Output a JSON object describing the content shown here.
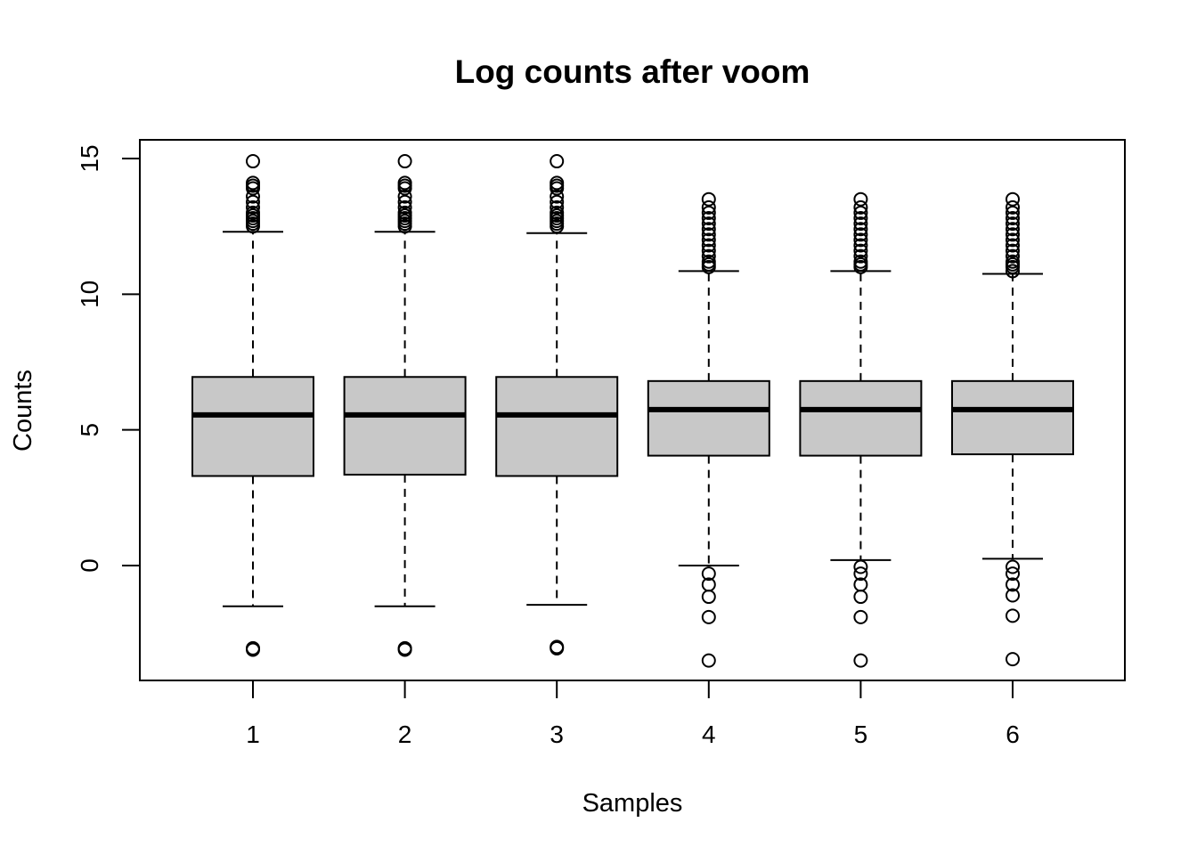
{
  "chart_data": {
    "type": "boxplot",
    "title": "Log counts after voom",
    "xlabel": "Samples",
    "ylabel": "Counts",
    "ylim": [
      -4.2,
      15.7
    ],
    "yticks": [
      0,
      5,
      10,
      15
    ],
    "categories": [
      "1",
      "2",
      "3",
      "4",
      "5",
      "6"
    ],
    "box_fill": "#c8c8c8",
    "boxes": [
      {
        "category": "1",
        "q1": 3.3,
        "median": 5.55,
        "q3": 6.95,
        "whisker_low": -1.5,
        "whisker_high": 12.3,
        "outliers_high": [
          12.5,
          12.6,
          12.7,
          12.8,
          12.9,
          13.0,
          13.2,
          13.4,
          13.6,
          13.9,
          14.0,
          14.1,
          14.9
        ],
        "outliers_low": [
          -3.05,
          -3.1
        ]
      },
      {
        "category": "2",
        "q1": 3.35,
        "median": 5.55,
        "q3": 6.95,
        "whisker_low": -1.5,
        "whisker_high": 12.3,
        "outliers_high": [
          12.5,
          12.6,
          12.7,
          12.8,
          12.9,
          13.0,
          13.2,
          13.4,
          13.6,
          13.9,
          14.0,
          14.1,
          14.9
        ],
        "outliers_low": [
          -3.05,
          -3.1
        ]
      },
      {
        "category": "3",
        "q1": 3.3,
        "median": 5.55,
        "q3": 6.95,
        "whisker_low": -1.45,
        "whisker_high": 12.25,
        "outliers_high": [
          12.5,
          12.6,
          12.7,
          12.8,
          12.9,
          13.0,
          13.2,
          13.4,
          13.6,
          13.9,
          14.0,
          14.1,
          14.9
        ],
        "outliers_low": [
          -3.0,
          -3.05
        ]
      },
      {
        "category": "4",
        "q1": 4.05,
        "median": 5.75,
        "q3": 6.8,
        "whisker_low": 0.0,
        "whisker_high": 10.85,
        "outliers_high": [
          11.0,
          11.1,
          11.2,
          11.4,
          11.6,
          11.8,
          12.0,
          12.2,
          12.4,
          12.6,
          12.8,
          13.0,
          13.2,
          13.5
        ],
        "outliers_low": [
          -0.3,
          -0.7,
          -1.15,
          -1.9,
          -3.5
        ]
      },
      {
        "category": "5",
        "q1": 4.05,
        "median": 5.75,
        "q3": 6.8,
        "whisker_low": 0.2,
        "whisker_high": 10.85,
        "outliers_high": [
          11.0,
          11.1,
          11.2,
          11.4,
          11.6,
          11.8,
          12.0,
          12.2,
          12.4,
          12.6,
          12.8,
          13.0,
          13.2,
          13.5
        ],
        "outliers_low": [
          -0.05,
          -0.3,
          -0.7,
          -1.15,
          -1.9,
          -3.5
        ]
      },
      {
        "category": "6",
        "q1": 4.1,
        "median": 5.75,
        "q3": 6.8,
        "whisker_low": 0.25,
        "whisker_high": 10.75,
        "outliers_high": [
          10.85,
          11.0,
          11.1,
          11.2,
          11.4,
          11.6,
          11.8,
          12.0,
          12.2,
          12.4,
          12.6,
          12.8,
          13.0,
          13.2,
          13.5
        ],
        "outliers_low": [
          -0.05,
          -0.3,
          -0.7,
          -1.1,
          -1.85,
          -3.45
        ]
      }
    ]
  }
}
